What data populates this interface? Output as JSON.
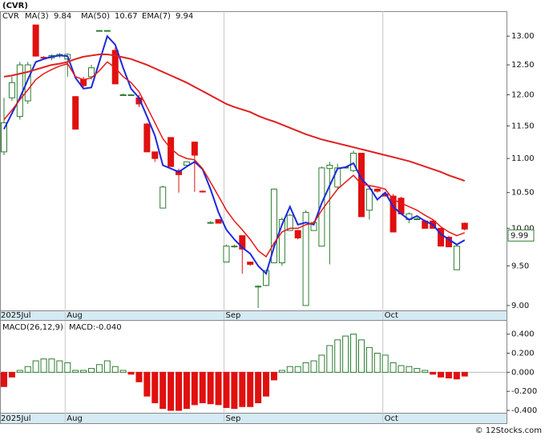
{
  "chart_data": [
    {
      "type": "candlestick",
      "title": "(CVR)",
      "log": true,
      "categories": [
        "2025Jul",
        null,
        null,
        null,
        null,
        null,
        null,
        null,
        "Aug",
        null,
        null,
        null,
        null,
        null,
        null,
        null,
        null,
        null,
        null,
        null,
        null,
        null,
        null,
        null,
        null,
        null,
        null,
        null,
        "Sep",
        null,
        null,
        null,
        null,
        null,
        null,
        null,
        null,
        null,
        null,
        null,
        null,
        null,
        null,
        null,
        null,
        null,
        null,
        null,
        "Oct",
        null,
        null,
        null,
        null,
        null,
        null,
        null,
        null,
        null,
        null
      ],
      "ohlc": {
        "name": "CVR",
        "up_color": "#2e7d32",
        "down_color": "#e01010",
        "open": [
          11.1,
          11.95,
          11.65,
          11.9,
          13.2,
          12.63,
          12.62,
          12.66,
          12.6,
          11.97,
          12.25,
          12.3,
          13.1,
          13.1,
          12.75,
          12.0,
          12.0,
          11.95,
          11.53,
          11.1,
          10.28,
          11.32,
          10.82,
          10.9,
          11.25,
          10.52,
          10.08,
          10.12,
          9.55,
          9.76,
          9.9,
          9.55,
          9.24,
          9.25,
          9.54,
          9.54,
          9.97,
          9.97,
          9.0,
          9.97,
          9.76,
          10.85,
          10.58,
          10.86,
          10.82,
          11.08,
          10.25,
          10.55,
          10.48,
          10.45,
          10.42,
          10.12,
          10.13,
          10.1,
          10.1,
          10.0,
          9.88,
          9.45,
          10.07
        ],
        "high": [
          11.95,
          12.3,
          12.55,
          12.55,
          13.2,
          12.65,
          12.68,
          12.7,
          12.7,
          11.98,
          12.3,
          12.5,
          13.1,
          13.1,
          12.8,
          12.02,
          12.0,
          12.0,
          11.55,
          11.1,
          10.6,
          11.32,
          10.85,
          10.95,
          11.25,
          10.53,
          10.1,
          10.12,
          9.78,
          9.78,
          9.9,
          9.55,
          9.25,
          9.45,
          10.56,
          10.15,
          10.2,
          9.98,
          10.25,
          10.1,
          10.88,
          10.95,
          10.92,
          10.88,
          11.12,
          11.08,
          10.6,
          10.56,
          10.5,
          10.48,
          10.44,
          10.22,
          10.15,
          10.12,
          10.12,
          10.0,
          9.9,
          9.78,
          10.08
        ],
        "low": [
          11.05,
          11.9,
          11.6,
          11.85,
          12.65,
          12.6,
          12.58,
          12.62,
          12.3,
          11.45,
          12.1,
          12.25,
          13.1,
          13.08,
          12.18,
          11.99,
          11.99,
          11.8,
          11.1,
          10.95,
          10.28,
          10.88,
          10.5,
          10.9,
          10.51,
          10.5,
          10.06,
          10.07,
          9.55,
          9.74,
          9.4,
          9.5,
          8.97,
          9.24,
          9.54,
          9.5,
          9.97,
          9.85,
          9.0,
          9.97,
          9.76,
          9.52,
          10.55,
          10.85,
          10.8,
          10.16,
          10.12,
          10.5,
          10.45,
          9.95,
          10.2,
          10.07,
          10.12,
          10.0,
          10.0,
          9.76,
          9.75,
          9.45,
          9.97
        ],
        "close": [
          11.55,
          12.2,
          12.5,
          12.5,
          12.65,
          12.62,
          12.66,
          12.68,
          12.68,
          11.45,
          12.15,
          12.45,
          13.1,
          13.1,
          12.18,
          12.0,
          12.0,
          11.85,
          11.1,
          11.0,
          10.58,
          10.88,
          10.76,
          10.95,
          11.05,
          10.51,
          10.08,
          10.07,
          9.76,
          9.76,
          9.72,
          9.52,
          9.24,
          9.44,
          10.55,
          10.12,
          10.18,
          9.87,
          10.22,
          10.08,
          10.86,
          10.9,
          10.86,
          10.87,
          11.08,
          10.16,
          10.55,
          10.52,
          10.45,
          9.95,
          10.2,
          10.2,
          10.13,
          10.0,
          10.0,
          9.76,
          9.75,
          9.76,
          9.99
        ]
      },
      "series": [
        {
          "name": "MA(3)",
          "color": "#1a2adc",
          "width": 2,
          "values": [
            11.45,
            11.7,
            11.95,
            12.25,
            12.55,
            12.6,
            12.64,
            12.66,
            12.65,
            12.28,
            12.1,
            12.12,
            12.55,
            13.0,
            12.85,
            12.45,
            12.1,
            11.95,
            11.65,
            11.35,
            10.9,
            10.85,
            10.8,
            10.88,
            10.95,
            10.84,
            10.55,
            10.22,
            9.98,
            9.85,
            9.74,
            9.66,
            9.5,
            9.4,
            9.75,
            10.05,
            10.3,
            10.05,
            10.08,
            10.05,
            10.35,
            10.6,
            10.85,
            10.87,
            10.93,
            10.7,
            10.58,
            10.4,
            10.5,
            10.3,
            10.2,
            10.12,
            10.17,
            10.1,
            10.05,
            9.92,
            9.85,
            9.78,
            9.84
          ]
        },
        {
          "name": "MA(50)",
          "color": "#e02020",
          "width": 2,
          "values": [
            12.3,
            12.32,
            12.35,
            12.38,
            12.42,
            12.46,
            12.5,
            12.52,
            12.55,
            12.6,
            12.64,
            12.66,
            12.68,
            12.68,
            12.66,
            12.63,
            12.6,
            12.55,
            12.5,
            12.44,
            12.38,
            12.32,
            12.26,
            12.2,
            12.13,
            12.06,
            11.99,
            11.92,
            11.85,
            11.8,
            11.76,
            11.72,
            11.66,
            11.61,
            11.57,
            11.52,
            11.47,
            11.42,
            11.37,
            11.33,
            11.29,
            11.26,
            11.23,
            11.2,
            11.17,
            11.14,
            11.11,
            11.08,
            11.05,
            11.02,
            10.99,
            10.96,
            10.92,
            10.88,
            10.84,
            10.8,
            10.75,
            10.71,
            10.67
          ]
        },
        {
          "name": "EMA(7)",
          "color": "#e81818",
          "width": 1.5,
          "values": [
            11.6,
            11.75,
            11.92,
            12.08,
            12.25,
            12.35,
            12.42,
            12.48,
            12.52,
            12.3,
            12.25,
            12.28,
            12.4,
            12.55,
            12.45,
            12.3,
            12.2,
            12.05,
            11.8,
            11.55,
            11.3,
            11.15,
            11.05,
            11.0,
            10.98,
            10.85,
            10.65,
            10.45,
            10.25,
            10.1,
            9.98,
            9.85,
            9.7,
            9.62,
            9.8,
            9.95,
            10.0,
            10.0,
            10.05,
            10.07,
            10.25,
            10.4,
            10.55,
            10.65,
            10.75,
            10.62,
            10.6,
            10.58,
            10.55,
            10.4,
            10.35,
            10.3,
            10.25,
            10.18,
            10.12,
            10.02,
            9.95,
            9.9,
            9.94
          ]
        }
      ],
      "ylim": [
        8.94,
        13.45
      ],
      "yticks": [
        {
          "value": 9,
          "label": "9.00"
        },
        {
          "value": 9.5,
          "label": "9.50"
        },
        {
          "value": 10,
          "label": "10.00"
        },
        {
          "value": 10.5,
          "label": "10.50"
        },
        {
          "value": 11,
          "label": "11.00"
        },
        {
          "value": 11.5,
          "label": "11.50"
        },
        {
          "value": 12,
          "label": "12.00"
        },
        {
          "value": 12.5,
          "label": "12.50"
        },
        {
          "value": 13,
          "label": "13.00"
        }
      ]
    },
    {
      "type": "bar",
      "title": "MACD(26,12,9)",
      "value_label": "MACD:-0.040",
      "up_color": "#2e7d32",
      "down_color": "#e01010",
      "categories": [
        "2025Jul",
        null,
        null,
        null,
        null,
        null,
        null,
        null,
        "Aug",
        null,
        null,
        null,
        null,
        null,
        null,
        null,
        null,
        null,
        null,
        null,
        null,
        null,
        null,
        null,
        null,
        null,
        null,
        null,
        "Sep",
        null,
        null,
        null,
        null,
        null,
        null,
        null,
        null,
        null,
        null,
        null,
        null,
        null,
        null,
        null,
        null,
        null,
        null,
        null,
        "Oct",
        null,
        null,
        null,
        null,
        null,
        null,
        null,
        null,
        null,
        null
      ],
      "values": [
        -0.15,
        -0.05,
        0.02,
        0.06,
        0.12,
        0.14,
        0.14,
        0.12,
        0.1,
        0.02,
        0.02,
        0.04,
        0.08,
        0.12,
        0.06,
        0.02,
        -0.02,
        -0.1,
        -0.25,
        -0.32,
        -0.38,
        -0.4,
        -0.4,
        -0.38,
        -0.34,
        -0.32,
        -0.33,
        -0.34,
        -0.37,
        -0.38,
        -0.36,
        -0.36,
        -0.32,
        -0.25,
        -0.08,
        0.02,
        0.06,
        0.06,
        0.1,
        0.12,
        0.18,
        0.28,
        0.34,
        0.38,
        0.4,
        0.34,
        0.26,
        0.2,
        0.18,
        0.1,
        0.07,
        0.06,
        0.04,
        0.02,
        -0.02,
        -0.05,
        -0.06,
        -0.07,
        -0.04
      ],
      "ylim": [
        -0.425,
        0.54
      ],
      "yticks": [
        {
          "value": -0.4,
          "label": "-0.400"
        },
        {
          "value": -0.2,
          "label": "-0.200"
        },
        {
          "value": 0,
          "label": "0.000"
        },
        {
          "value": 0.2,
          "label": "0.200"
        },
        {
          "value": 0.4,
          "label": "0.400"
        }
      ]
    }
  ],
  "footer": "© 12Stocks.com"
}
